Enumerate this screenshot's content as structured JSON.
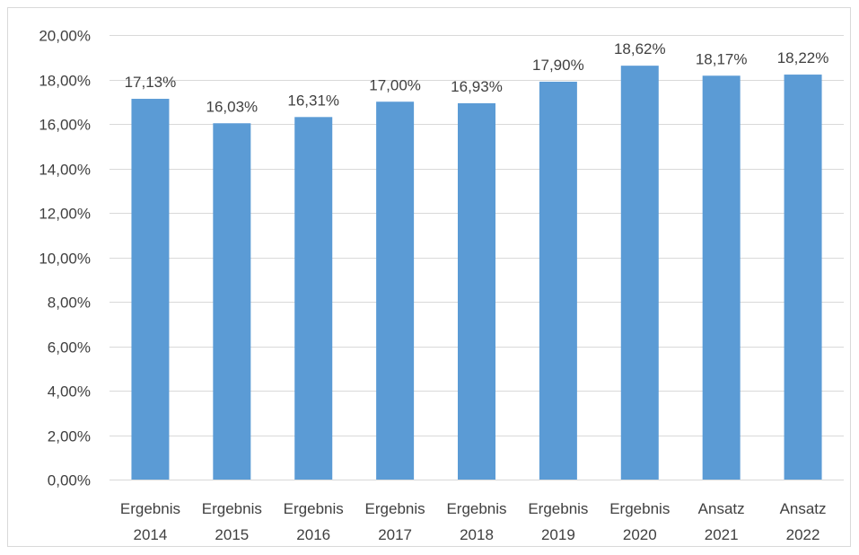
{
  "chart_data": {
    "type": "bar",
    "title": "",
    "xlabel": "",
    "ylabel": "",
    "categories": [
      [
        "Ergebnis",
        "2014"
      ],
      [
        "Ergebnis",
        "2015"
      ],
      [
        "Ergebnis",
        "2016"
      ],
      [
        "Ergebnis",
        "2017"
      ],
      [
        "Ergebnis",
        "2018"
      ],
      [
        "Ergebnis",
        "2019"
      ],
      [
        "Ergebnis",
        "2020"
      ],
      [
        "Ansatz",
        "2021"
      ],
      [
        "Ansatz",
        "2022"
      ]
    ],
    "values": [
      17.13,
      16.03,
      16.31,
      17.0,
      16.93,
      17.9,
      18.62,
      18.17,
      18.22
    ],
    "value_labels": [
      "17,13%",
      "16,03%",
      "16,31%",
      "17,00%",
      "16,93%",
      "17,90%",
      "18,62%",
      "18,17%",
      "18,22%"
    ],
    "ylim": [
      0,
      20
    ],
    "yticks": [
      0,
      2,
      4,
      6,
      8,
      10,
      12,
      14,
      16,
      18,
      20
    ],
    "ytick_labels": [
      "0,00%",
      "2,00%",
      "4,00%",
      "6,00%",
      "8,00%",
      "10,00%",
      "12,00%",
      "14,00%",
      "16,00%",
      "18,00%",
      "20,00%"
    ],
    "grid": true,
    "legend": "none",
    "bar_color": "#5b9bd5",
    "grid_color": "#d9d9d9",
    "text_color": "#404040"
  }
}
